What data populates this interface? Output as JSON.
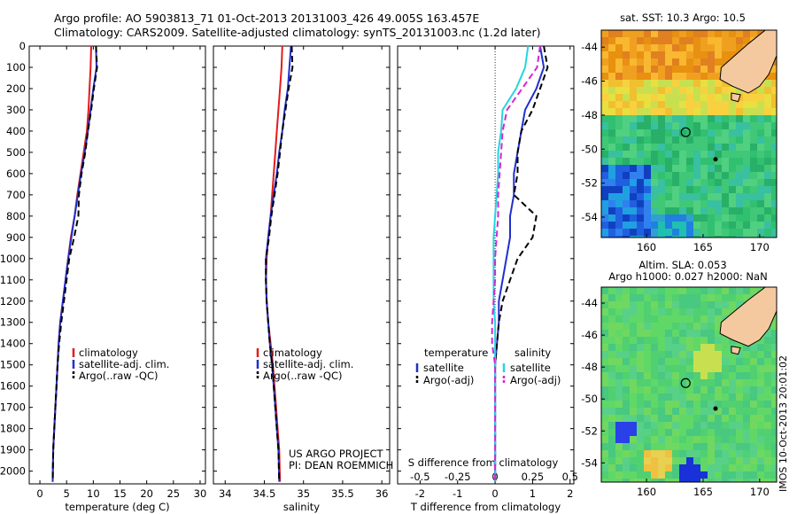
{
  "header": {
    "line1": "Argo profile: AO 5903813_71 01-Oct-2013 20131003_426 49.005S 163.457E",
    "line2": "Climatology: CARS2009. Satellite-adjusted climatology: synTS_20131003.nc (1.2d later)"
  },
  "footer_left": "US ARGO PROJECT",
  "footer_left2": "PI: DEAN ROEMMICH",
  "side_stamp": "IMOS 10-Oct-2013 20:01:02",
  "colors": {
    "climatology": "#e41a1c",
    "satellite": "#1f2fcf",
    "argo": "#000000",
    "sal_satellite": "#22d6e0",
    "sal_argo": "#d426d4",
    "land": "#f5c9a0"
  },
  "depth_ticks": [
    0,
    100,
    200,
    300,
    400,
    500,
    600,
    700,
    800,
    900,
    1000,
    1100,
    1200,
    1300,
    1400,
    1500,
    1600,
    1700,
    1800,
    1900,
    2000
  ],
  "chart_data": [
    {
      "type": "line",
      "id": "temperature",
      "xlabel": "temperature (deg C)",
      "ylabel": "",
      "xlim": [
        -2,
        31
      ],
      "ylim": [
        2060,
        0
      ],
      "xticks": [
        0,
        5,
        10,
        15,
        20,
        25,
        30
      ],
      "legend": [
        "climatology",
        "satellite-adj. clim.",
        "Argo(..raw -QC)"
      ],
      "legend_position": "lower-right",
      "series": [
        {
          "name": "climatology",
          "color": "#e41a1c",
          "style": "solid",
          "x": [
            9.6,
            9.5,
            9.3,
            9.1,
            8.8,
            8.2,
            7.6,
            7.0,
            6.5,
            5.8,
            5.3,
            4.8,
            4.3,
            3.8,
            3.5,
            3.3,
            3.1,
            2.9,
            2.7,
            2.5,
            2.4
          ],
          "y": [
            0,
            100,
            200,
            300,
            400,
            500,
            600,
            700,
            800,
            900,
            1000,
            1100,
            1200,
            1300,
            1400,
            1500,
            1600,
            1700,
            1800,
            1900,
            2050
          ]
        },
        {
          "name": "satellite-adj. clim.",
          "color": "#1f2fcf",
          "style": "solid",
          "x": [
            10.5,
            10.6,
            10.0,
            9.5,
            9.0,
            8.4,
            7.7,
            7.1,
            6.5,
            5.9,
            5.3,
            4.8,
            4.3,
            3.8,
            3.5,
            3.3,
            3.1,
            2.9,
            2.7,
            2.5,
            2.4
          ],
          "y": [
            0,
            100,
            200,
            300,
            400,
            500,
            600,
            700,
            800,
            900,
            1000,
            1100,
            1200,
            1300,
            1400,
            1500,
            1600,
            1700,
            1800,
            1900,
            2050
          ]
        },
        {
          "name": "Argo(..raw -QC)",
          "color": "#000000",
          "style": "dashed",
          "x": [
            10.5,
            10.7,
            10.1,
            9.6,
            9.0,
            8.5,
            7.8,
            7.3,
            7.2,
            6.4,
            5.5,
            5.0,
            4.5,
            4.0,
            3.6,
            3.3,
            3.1,
            2.9,
            2.7,
            2.5,
            2.4
          ],
          "y": [
            0,
            100,
            200,
            300,
            400,
            500,
            600,
            700,
            800,
            900,
            1000,
            1100,
            1200,
            1300,
            1400,
            1500,
            1600,
            1700,
            1800,
            1900,
            2050
          ]
        }
      ]
    },
    {
      "type": "line",
      "id": "salinity",
      "xlabel": "salinity",
      "ylabel": "",
      "xlim": [
        33.85,
        36.1
      ],
      "ylim": [
        2060,
        0
      ],
      "xticks": [
        34,
        34.5,
        35,
        35.5,
        36
      ],
      "xticklabels": [
        "34",
        "34.5",
        "35",
        "35.5",
        "36"
      ],
      "legend": [
        "climatology",
        "satellite-adj. clim.",
        "Argo(..raw -QC)"
      ],
      "legend_position": "lower-right",
      "series": [
        {
          "name": "climatology",
          "color": "#e41a1c",
          "style": "solid",
          "x": [
            34.73,
            34.72,
            34.7,
            34.68,
            34.66,
            34.64,
            34.62,
            34.6,
            34.58,
            34.55,
            34.53,
            34.52,
            34.53,
            34.55,
            34.58,
            34.61,
            34.63,
            34.65,
            34.67,
            34.69,
            34.7
          ],
          "y": [
            0,
            100,
            200,
            300,
            400,
            500,
            600,
            700,
            800,
            900,
            1000,
            1100,
            1200,
            1300,
            1400,
            1500,
            1600,
            1700,
            1800,
            1900,
            2050
          ]
        },
        {
          "name": "satellite-adj. clim.",
          "color": "#1f2fcf",
          "style": "solid",
          "x": [
            34.84,
            34.82,
            34.8,
            34.76,
            34.73,
            34.69,
            34.66,
            34.62,
            34.58,
            34.55,
            34.52,
            34.52,
            34.53,
            34.55,
            34.57,
            34.6,
            34.62,
            34.64,
            34.66,
            34.68,
            34.69
          ],
          "y": [
            0,
            100,
            200,
            300,
            400,
            500,
            600,
            700,
            800,
            900,
            1000,
            1100,
            1200,
            1300,
            1400,
            1500,
            1600,
            1700,
            1800,
            1900,
            2050
          ]
        },
        {
          "name": "Argo(..raw -QC)",
          "color": "#000000",
          "style": "dashed",
          "x": [
            34.85,
            34.86,
            34.81,
            34.77,
            34.73,
            34.7,
            34.67,
            34.63,
            34.59,
            34.56,
            34.52,
            34.52,
            34.53,
            34.55,
            34.57,
            34.6,
            34.62,
            34.64,
            34.66,
            34.68,
            34.69
          ],
          "y": [
            0,
            100,
            200,
            300,
            400,
            500,
            600,
            700,
            800,
            900,
            1000,
            1100,
            1200,
            1300,
            1400,
            1500,
            1600,
            1700,
            1800,
            1900,
            2050
          ]
        }
      ]
    },
    {
      "type": "line",
      "id": "difference",
      "xlabel": "T difference from climatology",
      "xlabel2": "S difference from climatology",
      "xlim": [
        -2.6,
        2.1
      ],
      "ylim": [
        2060,
        0
      ],
      "xticks": [
        -2,
        -1,
        0,
        1,
        2
      ],
      "xticks_s": [
        -0.5,
        -0.25,
        0,
        0.25,
        0.5
      ],
      "xticklabels_s": [
        "-0.5",
        "-0.25",
        "0",
        "0.25",
        "0.5"
      ],
      "legend_groups": [
        "temperature",
        "salinity"
      ],
      "legend": [
        "satellite",
        "Argo(-adj)",
        "satellite",
        "Argo(-adj)"
      ],
      "series": [
        {
          "name": "satellite",
          "group": "temperature",
          "color": "#1f2fcf",
          "style": "solid",
          "x": [
            1.2,
            1.3,
            1.1,
            0.8,
            0.7,
            0.6,
            0.5,
            0.5,
            0.4,
            0.4,
            0.3,
            0.2,
            0.1,
            0.1,
            0.05,
            0.0,
            0.0,
            0.0,
            0.0,
            0.0,
            0.0
          ],
          "y": [
            0,
            100,
            200,
            300,
            400,
            500,
            600,
            700,
            800,
            900,
            1000,
            1100,
            1200,
            1300,
            1400,
            1500,
            1600,
            1700,
            1800,
            1900,
            2050
          ]
        },
        {
          "name": "Argo(-adj)",
          "group": "temperature",
          "color": "#000000",
          "style": "dashed",
          "x": [
            1.3,
            1.4,
            1.2,
            1.0,
            0.7,
            0.6,
            0.6,
            0.5,
            1.1,
            1.0,
            0.6,
            0.4,
            0.2,
            0.1,
            0.05,
            0.0,
            0.0,
            0.0,
            0.0,
            0.0,
            0.0
          ],
          "y": [
            0,
            100,
            200,
            300,
            400,
            500,
            600,
            700,
            800,
            900,
            1000,
            1100,
            1200,
            1300,
            1400,
            1500,
            1600,
            1700,
            1800,
            1900,
            2050
          ]
        },
        {
          "name": "satellite",
          "group": "salinity",
          "color": "#22d6e0",
          "style": "solid",
          "s": [
            0.22,
            0.2,
            0.14,
            0.05,
            0.04,
            0.02,
            0.02,
            0.01,
            0.0,
            -0.01,
            -0.01,
            -0.01,
            -0.01,
            0.0,
            0.0,
            0.0,
            0.0,
            0.0,
            0.0,
            0.0,
            0.0
          ],
          "y": [
            0,
            100,
            200,
            300,
            400,
            500,
            600,
            700,
            800,
            900,
            1000,
            1100,
            1200,
            1300,
            1400,
            1500,
            1600,
            1700,
            1800,
            1900,
            2050
          ]
        },
        {
          "name": "Argo(-adj)",
          "group": "salinity",
          "color": "#d426d4",
          "style": "dashed",
          "s": [
            0.3,
            0.28,
            0.18,
            0.08,
            0.05,
            0.04,
            0.03,
            0.02,
            0.02,
            0.01,
            0.0,
            0.0,
            -0.01,
            -0.02,
            -0.02,
            0.0,
            0.0,
            0.0,
            0.0,
            0.0,
            0.0
          ],
          "y": [
            0,
            100,
            200,
            300,
            400,
            500,
            600,
            700,
            800,
            900,
            1000,
            1100,
            1200,
            1300,
            1400,
            1500,
            1600,
            1700,
            1800,
            1900,
            2050
          ]
        }
      ]
    }
  ],
  "maps": [
    {
      "id": "sst_map",
      "title": "sat. SST: 10.3 Argo: 10.5",
      "xticks": [
        160,
        165,
        170
      ],
      "yticks": [
        "-44",
        "-46",
        "-48",
        "-50",
        "-52",
        "-54"
      ],
      "marker_lon": 163.457,
      "marker_lat": -49.005
    },
    {
      "id": "sla_map",
      "title": "Altim. SLA: 0.053",
      "title2": "Argo h1000: 0.027 h2000: NaN",
      "xticks": [
        160,
        165,
        170
      ],
      "yticks": [
        "-44",
        "-46",
        "-48",
        "-50",
        "-52",
        "-54"
      ],
      "marker_lon": 163.457,
      "marker_lat": -49.005
    }
  ]
}
